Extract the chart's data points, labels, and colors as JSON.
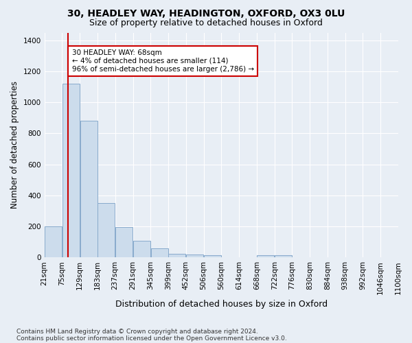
{
  "title1": "30, HEADLEY WAY, HEADINGTON, OXFORD, OX3 0LU",
  "title2": "Size of property relative to detached houses in Oxford",
  "xlabel": "Distribution of detached houses by size in Oxford",
  "ylabel": "Number of detached properties",
  "footnote1": "Contains HM Land Registry data © Crown copyright and database right 2024.",
  "footnote2": "Contains public sector information licensed under the Open Government Licence v3.0.",
  "bar_color": "#ccdcec",
  "bar_edge_color": "#88aacc",
  "background_color": "#e8eef5",
  "fig_background_color": "#e8eef5",
  "grid_color": "#ffffff",
  "bin_labels": [
    "21sqm",
    "75sqm",
    "129sqm",
    "183sqm",
    "237sqm",
    "291sqm",
    "345sqm",
    "399sqm",
    "452sqm",
    "506sqm",
    "560sqm",
    "614sqm",
    "668sqm",
    "722sqm",
    "776sqm",
    "830sqm",
    "884sqm",
    "938sqm",
    "992sqm",
    "1046sqm",
    "1100sqm"
  ],
  "bar_values": [
    200,
    1120,
    880,
    350,
    195,
    105,
    60,
    25,
    20,
    15,
    0,
    0,
    15,
    15,
    0,
    0,
    0,
    0,
    0,
    0
  ],
  "ylim": [
    0,
    1450
  ],
  "yticks": [
    0,
    200,
    400,
    600,
    800,
    1000,
    1200,
    1400
  ],
  "property_bin_index": 0.85,
  "annotation_text": "30 HEADLEY WAY: 68sqm\n← 4% of detached houses are smaller (114)\n96% of semi-detached houses are larger (2,786) →",
  "annotation_box_color": "#ffffff",
  "annotation_border_color": "#cc0000",
  "red_line_color": "#cc0000",
  "red_line_x": 0.85
}
